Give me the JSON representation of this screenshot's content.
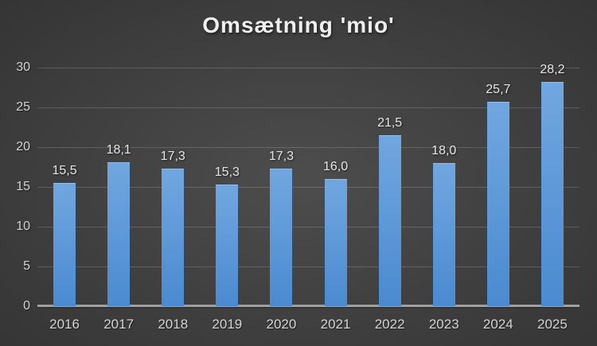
{
  "colors": {
    "background_center": "#4d4d4d",
    "background_mid": "#383838",
    "background_edge": "#262626",
    "bar_top": "#71a7e0",
    "bar_bottom": "#4a8ad0",
    "gridline": "rgba(255,255,255,0.17)",
    "axis_line": "#a0a0a0",
    "tick_label": "#d4d4d4",
    "data_label": "#e6e6e6",
    "title_color": "#f0f0f0"
  },
  "chart_data": {
    "type": "bar",
    "title": "Omsætning 'mio'",
    "xlabel": "",
    "ylabel": "",
    "categories": [
      "2016",
      "2017",
      "2018",
      "2019",
      "2020",
      "2021",
      "2022",
      "2023",
      "2024",
      "2025"
    ],
    "values": [
      15.5,
      18.1,
      17.3,
      15.3,
      17.3,
      16.0,
      21.5,
      18.0,
      25.7,
      28.2
    ],
    "value_labels": [
      "15,5",
      "18,1",
      "17,3",
      "15,3",
      "17,3",
      "16,0",
      "21,5",
      "18,0",
      "25,7",
      "28,2"
    ],
    "ylim": [
      0,
      30
    ],
    "yticks": [
      0,
      5,
      10,
      15,
      20,
      25,
      30
    ],
    "grid": "horizontal",
    "legend": "none",
    "decimal_separator": ","
  }
}
